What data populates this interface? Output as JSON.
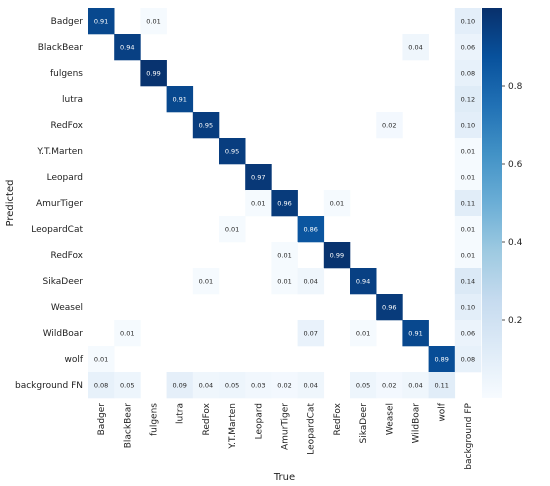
{
  "chart_data": {
    "type": "heatmap",
    "xlabel": "True",
    "ylabel": "Predicted",
    "x_categories": [
      "Badger",
      "BlackBear",
      "fulgens",
      "lutra",
      "RedFox",
      "Y.T.Marten",
      "Leopard",
      "AmurTiger",
      "LeopardCat",
      "RedFox",
      "SikaDeer",
      "Weasel",
      "WildBoar",
      "wolf",
      "background FP"
    ],
    "y_categories": [
      "Badger",
      "BlackBear",
      "fulgens",
      "lutra",
      "RedFox",
      "Y.T.Marten",
      "Leopard",
      "AmurTiger",
      "LeopardCat",
      "RedFox",
      "SikaDeer",
      "Weasel",
      "WildBoar",
      "wolf",
      "background FN"
    ],
    "values": [
      [
        0.91,
        null,
        0.01,
        null,
        null,
        null,
        null,
        null,
        null,
        null,
        null,
        null,
        null,
        null,
        0.1
      ],
      [
        null,
        0.94,
        null,
        null,
        null,
        null,
        null,
        null,
        null,
        null,
        null,
        null,
        0.04,
        null,
        0.06
      ],
      [
        null,
        null,
        0.99,
        null,
        null,
        null,
        null,
        null,
        null,
        null,
        null,
        null,
        null,
        null,
        0.08
      ],
      [
        null,
        null,
        null,
        0.91,
        null,
        null,
        null,
        null,
        null,
        null,
        null,
        null,
        null,
        null,
        0.12
      ],
      [
        null,
        null,
        null,
        null,
        0.95,
        null,
        null,
        null,
        null,
        null,
        null,
        0.02,
        null,
        null,
        0.1
      ],
      [
        null,
        null,
        null,
        null,
        null,
        0.95,
        null,
        null,
        null,
        null,
        null,
        null,
        null,
        null,
        0.01
      ],
      [
        null,
        null,
        null,
        null,
        null,
        null,
        0.97,
        null,
        null,
        null,
        null,
        null,
        null,
        null,
        0.01
      ],
      [
        null,
        null,
        null,
        null,
        null,
        null,
        0.01,
        0.96,
        null,
        0.01,
        null,
        null,
        null,
        null,
        0.11
      ],
      [
        null,
        null,
        null,
        null,
        null,
        0.01,
        null,
        null,
        0.86,
        null,
        null,
        null,
        null,
        null,
        0.01
      ],
      [
        null,
        null,
        null,
        null,
        null,
        null,
        null,
        0.01,
        null,
        0.99,
        null,
        null,
        null,
        null,
        0.01
      ],
      [
        null,
        null,
        null,
        null,
        0.01,
        null,
        null,
        0.01,
        0.04,
        null,
        0.94,
        null,
        null,
        null,
        0.14
      ],
      [
        null,
        null,
        null,
        null,
        null,
        null,
        null,
        null,
        null,
        null,
        null,
        0.96,
        null,
        null,
        0.1
      ],
      [
        null,
        0.01,
        null,
        null,
        null,
        null,
        null,
        null,
        0.07,
        null,
        0.01,
        null,
        0.91,
        null,
        0.06
      ],
      [
        0.01,
        null,
        null,
        null,
        null,
        null,
        null,
        null,
        null,
        null,
        null,
        null,
        null,
        0.89,
        0.08
      ],
      [
        0.08,
        0.05,
        null,
        0.09,
        0.04,
        0.05,
        0.03,
        0.02,
        0.04,
        null,
        0.05,
        0.02,
        0.04,
        0.11,
        null
      ]
    ],
    "value_range": [
      0,
      1
    ],
    "colorbar": {
      "ticks": [
        "0.2",
        "0.4",
        "0.6",
        "0.8"
      ],
      "colormap": "Blues"
    },
    "colors": {
      "low": "#f7fbff",
      "high": "#08306b"
    }
  }
}
